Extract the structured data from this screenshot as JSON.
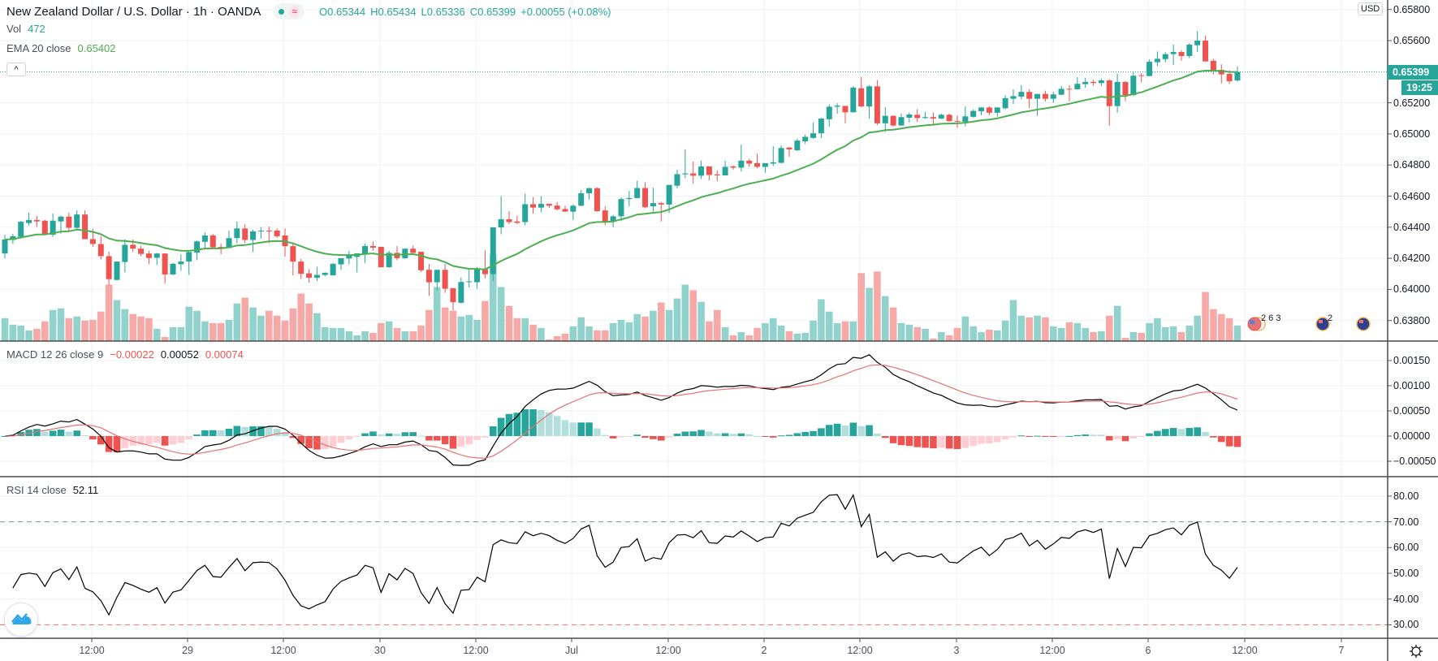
{
  "header": {
    "title": "New Zealand Dollar / U.S. Dollar · 1h · OANDA",
    "status_icons": [
      "market-open-dot-icon",
      "delayed-data-wave-icon"
    ],
    "open": "O0.65344",
    "high": "H0.65434",
    "low": "L0.65336",
    "close": "C0.65399",
    "change": "+0.00055 (+0.08%)",
    "vol_label": "Vol",
    "vol_value": "472",
    "ema_label": "EMA 20 close",
    "ema_value": "0.65402",
    "collapse_icon": "chevron-up-icon"
  },
  "macd_legend": {
    "label": "MACD 12 26 close 9",
    "histogram": "−0.00022",
    "macd": "0.00052",
    "signal": "0.00074"
  },
  "rsi_legend": {
    "label": "RSI 14 close",
    "value": "52.11"
  },
  "price_axis": {
    "currency": "USD",
    "ticks": [
      "0.65800",
      "0.65600",
      "0.65200",
      "0.65000",
      "0.64800",
      "0.64600",
      "0.64400",
      "0.64200",
      "0.64000",
      "0.63800"
    ],
    "last_price": "0.65399",
    "countdown": "19:25"
  },
  "macd_axis": {
    "ticks": [
      "0.00150",
      "0.00100",
      "0.00050",
      "0.00000",
      "−0.00050"
    ]
  },
  "rsi_axis": {
    "ticks": [
      "80.00",
      "70.00",
      "60.00",
      "50.00",
      "40.00",
      "30.00"
    ]
  },
  "time_axis": {
    "labels": [
      "12:00",
      "29",
      "12:00",
      "30",
      "12:00",
      "Jul",
      "12:00",
      "2",
      "12:00",
      "3",
      "12:00",
      "6",
      "12:00",
      "7"
    ]
  },
  "events": [
    {
      "flags": "US",
      "count": "2 6 3"
    },
    {
      "flags": "NZ",
      "count": "2"
    },
    {
      "flags": "NZ",
      "count": ""
    }
  ],
  "colors": {
    "up": "#26a69a",
    "down": "#ef5350",
    "volume_up": "#92d2cc",
    "volume_down": "#f7a9a7",
    "ema": "#4caf50",
    "macd": "#000000",
    "signal": "#e57373",
    "rsi": "#000000",
    "rsi_upper": "#6b9e8a",
    "rsi_lower": "#e57373"
  },
  "chart_data": {
    "type": "candlestick",
    "symbol": "NZDUSD",
    "interval": "1h",
    "ylim": [
      0.6372,
      0.6588
    ],
    "grid": true,
    "ohlc": [
      [
        0.64231,
        0.64352,
        0.642,
        0.64321
      ],
      [
        0.64318,
        0.64358,
        0.64292,
        0.64342
      ],
      [
        0.64338,
        0.64442,
        0.64335,
        0.64435
      ],
      [
        0.64427,
        0.64494,
        0.6441,
        0.64446
      ],
      [
        0.64446,
        0.64472,
        0.64401,
        0.64437
      ],
      [
        0.64442,
        0.64447,
        0.64349,
        0.64352
      ],
      [
        0.64352,
        0.64488,
        0.64338,
        0.64442
      ],
      [
        0.64437,
        0.64472,
        0.64358,
        0.64468
      ],
      [
        0.64468,
        0.64493,
        0.64378,
        0.64396
      ],
      [
        0.64396,
        0.64508,
        0.64387,
        0.64482
      ],
      [
        0.64482,
        0.64508,
        0.64323,
        0.64323
      ],
      [
        0.64323,
        0.6439,
        0.64274,
        0.64292
      ],
      [
        0.64292,
        0.64344,
        0.64193,
        0.64214
      ],
      [
        0.64214,
        0.64243,
        0.64027,
        0.64066
      ],
      [
        0.64061,
        0.64179,
        0.64058,
        0.64179
      ],
      [
        0.64176,
        0.64323,
        0.6411,
        0.64287
      ],
      [
        0.64287,
        0.64321,
        0.6424,
        0.64262
      ],
      [
        0.64262,
        0.6428,
        0.64214,
        0.64228
      ],
      [
        0.64231,
        0.64248,
        0.64162,
        0.64202
      ],
      [
        0.64204,
        0.64235,
        0.64157,
        0.64231
      ],
      [
        0.64231,
        0.64231,
        0.64037,
        0.64096
      ],
      [
        0.64096,
        0.6417,
        0.64092,
        0.64165
      ],
      [
        0.64162,
        0.64226,
        0.64119,
        0.64179
      ],
      [
        0.64179,
        0.64252,
        0.64093,
        0.6424
      ],
      [
        0.64236,
        0.64315,
        0.64188,
        0.64309
      ],
      [
        0.64306,
        0.64366,
        0.64262,
        0.64347
      ],
      [
        0.64347,
        0.64356,
        0.64266,
        0.64271
      ],
      [
        0.64273,
        0.64295,
        0.64226,
        0.64266
      ],
      [
        0.64266,
        0.64378,
        0.64266,
        0.6433
      ],
      [
        0.6433,
        0.64436,
        0.64295,
        0.64392
      ],
      [
        0.64392,
        0.64418,
        0.64297,
        0.64318
      ],
      [
        0.64318,
        0.64384,
        0.6424,
        0.64373
      ],
      [
        0.64373,
        0.64401,
        0.64326,
        0.64378
      ],
      [
        0.64378,
        0.64404,
        0.64297,
        0.64375
      ],
      [
        0.64378,
        0.64392,
        0.64332,
        0.64342
      ],
      [
        0.64347,
        0.64392,
        0.6421,
        0.64278
      ],
      [
        0.64278,
        0.64292,
        0.6409,
        0.64179
      ],
      [
        0.64179,
        0.64196,
        0.64067,
        0.641
      ],
      [
        0.64103,
        0.64131,
        0.64044,
        0.64075
      ],
      [
        0.64075,
        0.64145,
        0.64054,
        0.64093
      ],
      [
        0.64093,
        0.6411,
        0.64085,
        0.64107
      ],
      [
        0.64091,
        0.64169,
        0.64088,
        0.64164
      ],
      [
        0.64161,
        0.64201,
        0.64126,
        0.64201
      ],
      [
        0.64199,
        0.64248,
        0.64161,
        0.64218
      ],
      [
        0.64209,
        0.64232,
        0.64109,
        0.64232
      ],
      [
        0.64227,
        0.64295,
        0.6417,
        0.64279
      ],
      [
        0.64279,
        0.64308,
        0.64248,
        0.64268
      ],
      [
        0.64274,
        0.64274,
        0.6414,
        0.64143
      ],
      [
        0.64143,
        0.64248,
        0.6414,
        0.64235
      ],
      [
        0.64235,
        0.64279,
        0.64187,
        0.64201
      ],
      [
        0.64201,
        0.64265,
        0.64196,
        0.64262
      ],
      [
        0.64262,
        0.64282,
        0.6423,
        0.64235
      ],
      [
        0.64242,
        0.64242,
        0.64112,
        0.64123
      ],
      [
        0.64126,
        0.64164,
        0.63958,
        0.64046
      ],
      [
        0.64046,
        0.64126,
        0.6399,
        0.64126
      ],
      [
        0.64126,
        0.64164,
        0.63978,
        0.64004
      ],
      [
        0.64008,
        0.64008,
        0.63866,
        0.63918
      ],
      [
        0.63914,
        0.64077,
        0.6391,
        0.64048
      ],
      [
        0.64048,
        0.64126,
        0.64013,
        0.64052
      ],
      [
        0.64046,
        0.64143,
        0.64004,
        0.6413
      ],
      [
        0.6413,
        0.64251,
        0.6407,
        0.64098
      ],
      [
        0.64098,
        0.64399,
        0.64053,
        0.64399
      ],
      [
        0.64399,
        0.646,
        0.64355,
        0.64451
      ],
      [
        0.64451,
        0.64503,
        0.64421,
        0.64433
      ],
      [
        0.64437,
        0.64473,
        0.64421,
        0.64428
      ],
      [
        0.64433,
        0.64616,
        0.64413,
        0.64548
      ],
      [
        0.64548,
        0.64593,
        0.64487,
        0.64526
      ],
      [
        0.64526,
        0.646,
        0.64496,
        0.6455
      ],
      [
        0.6455,
        0.64552,
        0.64524,
        0.64538
      ],
      [
        0.64539,
        0.64563,
        0.64508,
        0.64515
      ],
      [
        0.64517,
        0.64539,
        0.645,
        0.645
      ],
      [
        0.645,
        0.64548,
        0.64446,
        0.64538
      ],
      [
        0.64538,
        0.64639,
        0.64535,
        0.64618
      ],
      [
        0.64618,
        0.64654,
        0.64578,
        0.64651
      ],
      [
        0.64651,
        0.64655,
        0.645,
        0.64503
      ],
      [
        0.64508,
        0.64534,
        0.64413,
        0.64435
      ],
      [
        0.64435,
        0.6448,
        0.644,
        0.6447
      ],
      [
        0.6447,
        0.64592,
        0.64439,
        0.64581
      ],
      [
        0.64581,
        0.64633,
        0.64534,
        0.64588
      ],
      [
        0.64588,
        0.64699,
        0.64585,
        0.64652
      ],
      [
        0.64652,
        0.64689,
        0.64522,
        0.64529
      ],
      [
        0.64534,
        0.64655,
        0.645,
        0.64555
      ],
      [
        0.64555,
        0.64563,
        0.64437,
        0.64546
      ],
      [
        0.64546,
        0.64672,
        0.64491,
        0.64672
      ],
      [
        0.64667,
        0.6477,
        0.6465,
        0.64741
      ],
      [
        0.6474,
        0.649,
        0.64715,
        0.64746
      ],
      [
        0.64746,
        0.64822,
        0.64681,
        0.64731
      ],
      [
        0.64731,
        0.64828,
        0.6471,
        0.64791
      ],
      [
        0.64791,
        0.64791,
        0.64701,
        0.64736
      ],
      [
        0.64739,
        0.64765,
        0.64696,
        0.64733
      ],
      [
        0.64733,
        0.64828,
        0.64733,
        0.64788
      ],
      [
        0.64791,
        0.64796,
        0.6477,
        0.64783
      ],
      [
        0.64783,
        0.64931,
        0.64758,
        0.64828
      ],
      [
        0.64828,
        0.6484,
        0.64788,
        0.64809
      ],
      [
        0.64812,
        0.64874,
        0.64779,
        0.64788
      ],
      [
        0.64788,
        0.64812,
        0.6475,
        0.64812
      ],
      [
        0.64809,
        0.64921,
        0.64793,
        0.64817
      ],
      [
        0.64814,
        0.64926,
        0.64809,
        0.64909
      ],
      [
        0.64912,
        0.64917,
        0.64852,
        0.649
      ],
      [
        0.64895,
        0.64969,
        0.64888,
        0.64957
      ],
      [
        0.64952,
        0.64995,
        0.64935,
        0.64981
      ],
      [
        0.64974,
        0.65073,
        0.64969,
        0.65004
      ],
      [
        0.65004,
        0.65102,
        0.64974,
        0.65099
      ],
      [
        0.65094,
        0.6519,
        0.65047,
        0.65175
      ],
      [
        0.65175,
        0.65197,
        0.6513,
        0.65182
      ],
      [
        0.6518,
        0.6518,
        0.65068,
        0.65139
      ],
      [
        0.65139,
        0.65306,
        0.65137,
        0.65298
      ],
      [
        0.65294,
        0.65367,
        0.65172,
        0.65177
      ],
      [
        0.65177,
        0.65315,
        0.65099,
        0.65306
      ],
      [
        0.65306,
        0.65346,
        0.65056,
        0.65068
      ],
      [
        0.65068,
        0.65171,
        0.65013,
        0.65116
      ],
      [
        0.65116,
        0.65121,
        0.65047,
        0.65054
      ],
      [
        0.65054,
        0.65133,
        0.6505,
        0.65108
      ],
      [
        0.65104,
        0.65137,
        0.65073,
        0.65125
      ],
      [
        0.65123,
        0.65159,
        0.65078,
        0.65102
      ],
      [
        0.65102,
        0.65142,
        0.65097,
        0.65108
      ],
      [
        0.65108,
        0.65137,
        0.65061,
        0.65099
      ],
      [
        0.65099,
        0.6513,
        0.65095,
        0.65123
      ],
      [
        0.65123,
        0.6513,
        0.65078,
        0.65082
      ],
      [
        0.65083,
        0.65118,
        0.6504,
        0.65078
      ],
      [
        0.65078,
        0.65177,
        0.65049,
        0.65113
      ],
      [
        0.6511,
        0.65157,
        0.65104,
        0.65148
      ],
      [
        0.65146,
        0.65173,
        0.6512,
        0.6517
      ],
      [
        0.6517,
        0.65179,
        0.6512,
        0.65136
      ],
      [
        0.65136,
        0.65173,
        0.6511,
        0.6517
      ],
      [
        0.65165,
        0.65249,
        0.65157,
        0.6523
      ],
      [
        0.65226,
        0.65287,
        0.65191,
        0.65243
      ],
      [
        0.6524,
        0.65313,
        0.65223,
        0.6527
      ],
      [
        0.6527,
        0.65287,
        0.65165,
        0.65226
      ],
      [
        0.65226,
        0.65257,
        0.65117,
        0.65257
      ],
      [
        0.65257,
        0.65278,
        0.65209,
        0.65226
      ],
      [
        0.65226,
        0.6527,
        0.652,
        0.65254
      ],
      [
        0.65252,
        0.65308,
        0.65249,
        0.6529
      ],
      [
        0.6529,
        0.65313,
        0.65209,
        0.65287
      ],
      [
        0.65287,
        0.65365,
        0.65284,
        0.65322
      ],
      [
        0.6532,
        0.6536,
        0.65296,
        0.65334
      ],
      [
        0.65334,
        0.65348,
        0.6531,
        0.65327
      ],
      [
        0.65327,
        0.65356,
        0.65308,
        0.65344
      ],
      [
        0.65344,
        0.65353,
        0.65052,
        0.65179
      ],
      [
        0.65179,
        0.65386,
        0.65136,
        0.65334
      ],
      [
        0.65334,
        0.65339,
        0.65209,
        0.65249
      ],
      [
        0.65249,
        0.65395,
        0.65246,
        0.65374
      ],
      [
        0.65377,
        0.65391,
        0.6533,
        0.65372
      ],
      [
        0.65372,
        0.65478,
        0.6537,
        0.65464
      ],
      [
        0.65461,
        0.6553,
        0.65435,
        0.65483
      ],
      [
        0.65481,
        0.65525,
        0.65461,
        0.65513
      ],
      [
        0.65513,
        0.65574,
        0.65443,
        0.65527
      ],
      [
        0.65527,
        0.65539,
        0.6547,
        0.65501
      ],
      [
        0.65501,
        0.65583,
        0.65487,
        0.65574
      ],
      [
        0.6557,
        0.65661,
        0.65527,
        0.656
      ],
      [
        0.656,
        0.65631,
        0.65466,
        0.65466
      ],
      [
        0.6547,
        0.65482,
        0.65383,
        0.65409
      ],
      [
        0.65412,
        0.65447,
        0.65325,
        0.65383
      ],
      [
        0.65386,
        0.65409,
        0.65322,
        0.65339
      ],
      [
        0.65344,
        0.65434,
        0.65336,
        0.65399
      ]
    ],
    "volume": [
      700,
      500,
      475,
      325,
      375,
      600,
      950,
      1000,
      700,
      750,
      625,
      650,
      900,
      1725,
      1250,
      975,
      825,
      750,
      700,
      375,
      125,
      425,
      425,
      1050,
      925,
      600,
      550,
      550,
      650,
      1150,
      1325,
      1025,
      775,
      925,
      775,
      625,
      1000,
      1450,
      1150,
      850,
      425,
      400,
      400,
      300,
      175,
      300,
      250,
      550,
      600,
      400,
      300,
      300,
      475,
      950,
      1650,
      1025,
      925,
      750,
      800,
      650,
      1225,
      2650,
      1650,
      1075,
      700,
      700,
      500,
      400,
      50,
      150,
      225,
      450,
      725,
      450,
      325,
      325,
      550,
      650,
      575,
      825,
      750,
      925,
      1175,
      950,
      1300,
      1725,
      1550,
      1200,
      600,
      950,
      425,
      175,
      275,
      175,
      400,
      550,
      700,
      475,
      300,
      225,
      250,
      625,
      1275,
      900,
      550,
      600,
      600,
      2075,
      1625,
      2125,
      1375,
      1025,
      550,
      500,
      425,
      375,
      75,
      275,
      175,
      400,
      750,
      450,
      275,
      350,
      325,
      625,
      1250,
      775,
      725,
      775,
      725,
      450,
      400,
      575,
      550,
      400,
      275,
      300,
      775,
      1075,
      100,
      275,
      250,
      550,
      700,
      425,
      450,
      275,
      475,
      775,
      1500,
      975,
      825,
      700,
      472
    ],
    "indicators": {
      "ema": {
        "period": 20,
        "source": "close"
      },
      "macd": {
        "fast": 12,
        "slow": 26,
        "signal": 9,
        "ylim": [
          -0.0008,
          0.0018
        ]
      },
      "rsi": {
        "period": 14,
        "upper": 70,
        "lower": 30,
        "ylim": [
          23,
          87
        ]
      }
    }
  }
}
